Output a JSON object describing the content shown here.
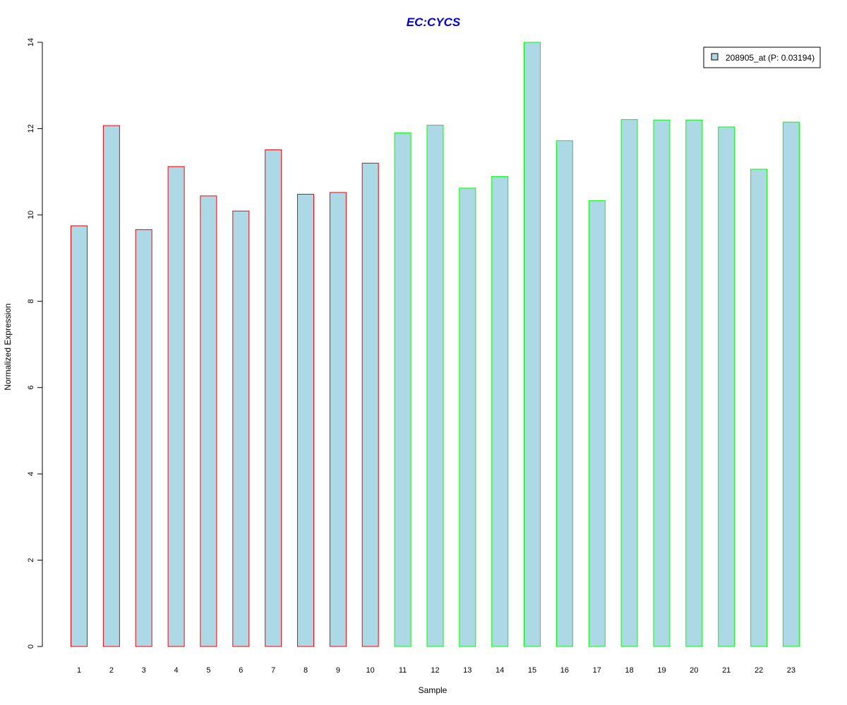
{
  "chart_data": {
    "type": "bar",
    "title": "EC:CYCS",
    "xlabel": "Sample",
    "ylabel": "Normalized Expression",
    "categories": [
      "1",
      "2",
      "3",
      "4",
      "5",
      "6",
      "7",
      "8",
      "9",
      "10",
      "11",
      "12",
      "13",
      "14",
      "15",
      "16",
      "17",
      "18",
      "19",
      "20",
      "21",
      "22",
      "23"
    ],
    "series": [
      {
        "name": "208905_at (P: 0.03194)",
        "values": [
          9.75,
          12.07,
          9.66,
          11.12,
          10.44,
          10.09,
          11.51,
          10.48,
          10.52,
          11.2,
          11.9,
          12.08,
          10.62,
          10.89,
          14.0,
          11.72,
          10.33,
          12.21,
          12.2,
          12.2,
          12.04,
          11.06,
          12.15
        ]
      }
    ],
    "ylim": [
      0,
      14
    ],
    "yticks": [
      0,
      2,
      4,
      6,
      8,
      10,
      12,
      14
    ],
    "groups": [
      {
        "samples": 10,
        "border_color": "#ff0000"
      },
      {
        "samples": 13,
        "border_color": "#00ff00"
      }
    ],
    "colors": {
      "bar_fill": "#add8e6",
      "title": "#0000cd",
      "axis": "#000000"
    },
    "legend": {
      "placement": "top-right",
      "border": true
    },
    "grid": false
  }
}
